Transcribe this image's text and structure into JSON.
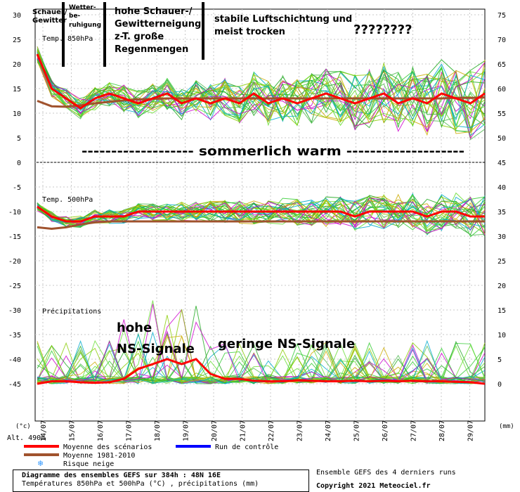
{
  "chart_data": {
    "type": "line",
    "panels": [
      {
        "name": "Temp. 850hPa",
        "left_ylim": [
          0,
          30
        ],
        "left_ticks": [
          5,
          10,
          15,
          20,
          25,
          30
        ],
        "right_ylim": [
          45,
          75
        ],
        "right_ticks": [
          50,
          55,
          60,
          65,
          70,
          75
        ]
      },
      {
        "name": "Temp. 500hPa",
        "left_ylim": [
          -45,
          0
        ],
        "left_ticks": [
          -45,
          -40,
          -35,
          -30,
          -25,
          -20,
          -15,
          -10,
          -5,
          0
        ],
        "right_ticks_temp": [
          25,
          30,
          35,
          40,
          45
        ]
      },
      {
        "name": "Précipitations",
        "right_ylim_mm": [
          0,
          20
        ],
        "right_ticks_mm": [
          0,
          5,
          10,
          15,
          20
        ]
      }
    ],
    "x_categories": [
      "14/07",
      "15/07",
      "16/07",
      "17/07",
      "18/07",
      "19/07",
      "20/07",
      "21/07",
      "22/07",
      "23/07",
      "24/07",
      "25/07",
      "26/07",
      "27/07",
      "28/07",
      "29/07"
    ],
    "x_unit_left": "(°c)",
    "x_unit_right": "(mm)",
    "series": [
      {
        "name": "Moyenne des scénarios",
        "color": "#ff0000",
        "t850": [
          22,
          15,
          13,
          11,
          13,
          14,
          13,
          12,
          13,
          14,
          12,
          13,
          12,
          13,
          12,
          14,
          12,
          13,
          12,
          13,
          14,
          13,
          12,
          13,
          14,
          12,
          13,
          12,
          14,
          13,
          12,
          14
        ],
        "t500": [
          -9,
          -11,
          -12,
          -12,
          -11,
          -11,
          -11,
          -10,
          -10,
          -10,
          -10,
          -10,
          -10,
          -10,
          -10,
          -10,
          -10,
          -10,
          -10,
          -10,
          -10,
          -10,
          -11,
          -10,
          -10,
          -10,
          -10,
          -11,
          -10,
          -10,
          -11,
          -11
        ],
        "precip_mm": [
          0,
          0.5,
          0.5,
          0.3,
          0.2,
          0.3,
          1,
          3,
          4,
          5,
          4,
          5,
          2,
          1,
          1,
          0.6,
          0.5,
          0.5,
          0.7,
          0.6,
          0.5,
          0.5,
          0.6,
          0.5,
          0.6,
          0.5,
          0.6,
          0.5,
          0.5,
          0.4,
          0.3,
          0
        ]
      },
      {
        "name": "Moyenne 1981-2010",
        "color": "#a0522d",
        "t850": [
          12.5,
          11.4,
          11.3,
          11.6,
          12.0,
          12.3,
          12.6,
          12.8,
          12.9,
          13.0,
          13.0,
          13.0,
          13.0,
          13.0,
          13.0,
          13.0,
          13.0,
          13.0,
          13.0,
          13.0,
          13.0,
          13.0,
          13.0,
          13.0,
          13.0,
          13.0,
          13.0,
          13.0,
          13.0,
          13.1,
          13.1,
          13.2
        ],
        "t500": [
          -13.2,
          -13.5,
          -13.2,
          -12.6,
          -12.2,
          -12.0,
          -12.0,
          -12.0,
          -12.0,
          -12.0,
          -12.0,
          -12.0,
          -12.0,
          -12.0,
          -12.0,
          -12.0,
          -12.0,
          -12.0,
          -12.0,
          -12.0,
          -12.0,
          -12.0,
          -12.0,
          -12.0,
          -12.0,
          -12.0,
          -12.0,
          -12.0,
          -12.0,
          -12.0,
          -12.0,
          -12.0
        ]
      },
      {
        "name": "Run de contrôle",
        "color": "#0000ff"
      }
    ],
    "legend": {
      "items": [
        "Moyenne des scénarios",
        "Moyenne 1981-2010",
        "Run de contrôle",
        "Risque neige"
      ],
      "placement": "bottom-left"
    },
    "labels": {
      "temp850": "Temp. 850hPa",
      "temp500": "Temp. 500hPa",
      "precip": "Précipitations",
      "altitude": "Alt. 490m"
    }
  },
  "annotations": {
    "phase1": [
      "Schauer/",
      "Gewitter"
    ],
    "phase2": [
      "Wetter-",
      "be-",
      "ruhigung"
    ],
    "phase3": [
      "hohe Schauer-/",
      "Gewitterneigung;",
      "z-T. große",
      "Regenmengen"
    ],
    "phase4": [
      "stabile Luftschichtung und",
      "meist trocken"
    ],
    "phase5": "????????",
    "summer": "------------------- sommerlich warm --------------------",
    "ns_high": [
      "hohe",
      "NS-Signale"
    ],
    "ns_low": "geringe NS-Signale"
  },
  "footer": {
    "title": "Diagramme des ensembles GEFS sur 384h : 48N 16E",
    "subtitle": "Températures 850hPa et 500hPa (°C) , précipitations (mm)",
    "runs": "Ensemble GEFS des 4 derniers runs",
    "copyright": "Copyright 2021 Meteociel.fr"
  },
  "colors": {
    "ensemble": [
      "#33cc33",
      "#88cc00",
      "#22aa22",
      "#cc00cc",
      "#ccaa00",
      "#00aacc",
      "#66dd33",
      "#55bb55"
    ],
    "mean": "#ff0000",
    "climate": "#a0522d",
    "control": "#0000ff"
  }
}
